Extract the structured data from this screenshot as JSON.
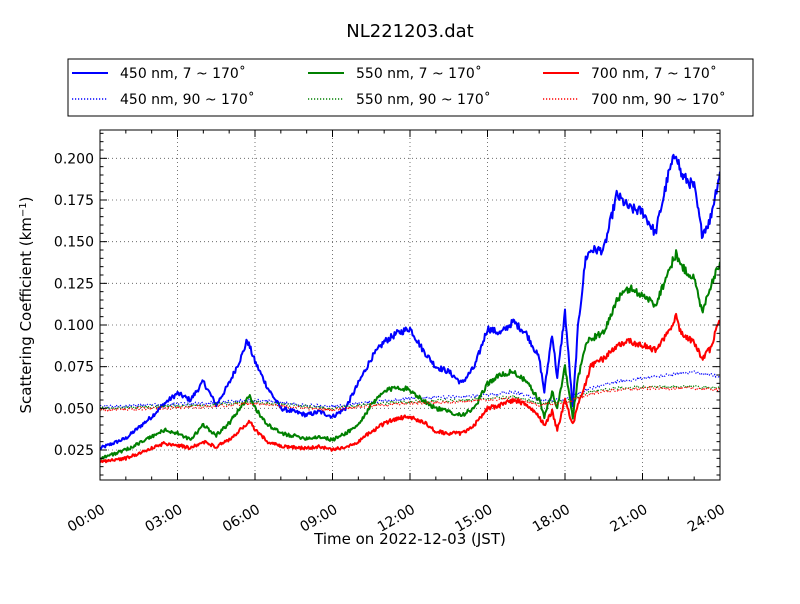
{
  "chart_data": {
    "type": "line",
    "title": "NL221203.dat",
    "xlabel": "Time on 2022-12-03 (JST)",
    "ylabel_prefix": "Scattering Coefficient (km",
    "ylabel_sup": "−1",
    "ylabel_suffix": ")",
    "xlim": [
      "00:00",
      "24:00"
    ],
    "ylim": [
      0.007,
      0.217
    ],
    "xticks": [
      "00:00",
      "03:00",
      "06:00",
      "09:00",
      "12:00",
      "15:00",
      "18:00",
      "21:00",
      "24:00"
    ],
    "yticks": [
      "0.025",
      "0.050",
      "0.075",
      "0.100",
      "0.125",
      "0.150",
      "0.175",
      "0.200"
    ],
    "grid": true,
    "legend_position": "top (above plot)",
    "series": [
      {
        "name": "450 nm, 7 ~ 170˚",
        "color": "#0000ff",
        "style": "solid",
        "x": [
          0,
          1,
          2,
          2.5,
          3,
          3.5,
          4,
          4.5,
          5,
          5.5,
          5.7,
          6,
          6.5,
          7,
          8,
          8.5,
          9,
          9.5,
          10,
          10.5,
          11,
          11.5,
          12,
          12.5,
          13,
          13.5,
          14,
          14.5,
          15,
          15.5,
          16,
          16.5,
          17,
          17.2,
          17.5,
          17.7,
          18,
          18.3,
          18.5,
          18.8,
          19,
          19.5,
          20,
          20.5,
          21,
          21.5,
          22,
          22.3,
          22.5,
          23,
          23.3,
          23.6,
          24
        ],
        "y": [
          0.026,
          0.032,
          0.045,
          0.053,
          0.059,
          0.055,
          0.066,
          0.052,
          0.065,
          0.082,
          0.091,
          0.078,
          0.062,
          0.05,
          0.046,
          0.048,
          0.045,
          0.05,
          0.065,
          0.08,
          0.09,
          0.095,
          0.098,
          0.085,
          0.075,
          0.072,
          0.065,
          0.075,
          0.098,
          0.095,
          0.102,
          0.095,
          0.08,
          0.06,
          0.095,
          0.068,
          0.108,
          0.05,
          0.098,
          0.14,
          0.145,
          0.145,
          0.178,
          0.17,
          0.168,
          0.155,
          0.19,
          0.204,
          0.19,
          0.183,
          0.155,
          0.162,
          0.192
        ]
      },
      {
        "name": "450 nm, 90 ~ 170˚",
        "color": "#0000ff",
        "style": "dotted",
        "x": [
          0,
          2,
          4,
          6,
          8,
          9,
          10,
          12,
          14,
          15,
          16,
          17,
          18,
          19,
          20,
          21,
          22,
          23,
          24
        ],
        "y": [
          0.051,
          0.052,
          0.053,
          0.055,
          0.052,
          0.051,
          0.053,
          0.056,
          0.057,
          0.058,
          0.06,
          0.055,
          0.055,
          0.062,
          0.066,
          0.068,
          0.07,
          0.072,
          0.069
        ]
      },
      {
        "name": "550 nm, 7 ~ 170˚",
        "color": "#008000",
        "style": "solid",
        "x": [
          0,
          1,
          2,
          2.5,
          3,
          3.5,
          4,
          4.5,
          5,
          5.5,
          5.8,
          6,
          6.5,
          7,
          8,
          8.5,
          9,
          9.5,
          10,
          10.5,
          11,
          11.5,
          12,
          12.5,
          13,
          13.5,
          14,
          14.5,
          15,
          15.5,
          16,
          16.5,
          17,
          17.2,
          17.5,
          17.7,
          18,
          18.3,
          18.5,
          18.8,
          19,
          19.5,
          20,
          20.5,
          21,
          21.5,
          22,
          22.3,
          22.5,
          23,
          23.3,
          23.6,
          24
        ],
        "y": [
          0.02,
          0.025,
          0.033,
          0.037,
          0.035,
          0.031,
          0.04,
          0.034,
          0.041,
          0.052,
          0.058,
          0.05,
          0.04,
          0.035,
          0.032,
          0.033,
          0.031,
          0.035,
          0.04,
          0.052,
          0.06,
          0.063,
          0.061,
          0.055,
          0.05,
          0.048,
          0.046,
          0.05,
          0.065,
          0.07,
          0.072,
          0.066,
          0.055,
          0.045,
          0.06,
          0.05,
          0.075,
          0.045,
          0.068,
          0.088,
          0.092,
          0.095,
          0.115,
          0.122,
          0.118,
          0.112,
          0.132,
          0.143,
          0.135,
          0.128,
          0.108,
          0.122,
          0.138
        ]
      },
      {
        "name": "550 nm, 90 ~ 170˚",
        "color": "#008000",
        "style": "dotted",
        "x": [
          0,
          2,
          4,
          6,
          8,
          9,
          10,
          12,
          14,
          15,
          16,
          17,
          18,
          19,
          20,
          21,
          22,
          23,
          24
        ],
        "y": [
          0.05,
          0.051,
          0.052,
          0.054,
          0.051,
          0.05,
          0.052,
          0.054,
          0.055,
          0.056,
          0.057,
          0.053,
          0.054,
          0.06,
          0.062,
          0.063,
          0.063,
          0.063,
          0.062
        ]
      },
      {
        "name": "700 nm, 7 ~ 170˚",
        "color": "#ff0000",
        "style": "solid",
        "x": [
          0,
          1,
          2,
          2.5,
          3,
          3.5,
          4,
          4.5,
          5,
          5.5,
          5.8,
          6,
          6.5,
          7,
          8,
          8.5,
          9,
          9.5,
          10,
          10.5,
          11,
          11.5,
          12,
          12.5,
          13,
          13.5,
          14,
          14.5,
          15,
          15.5,
          16,
          16.5,
          17,
          17.2,
          17.5,
          17.7,
          18,
          18.3,
          18.5,
          18.8,
          19,
          19.5,
          20,
          20.5,
          21,
          21.5,
          22,
          22.3,
          22.5,
          23,
          23.3,
          23.6,
          24
        ],
        "y": [
          0.018,
          0.02,
          0.026,
          0.029,
          0.028,
          0.026,
          0.03,
          0.027,
          0.031,
          0.038,
          0.042,
          0.037,
          0.03,
          0.027,
          0.026,
          0.027,
          0.025,
          0.027,
          0.03,
          0.036,
          0.041,
          0.044,
          0.045,
          0.042,
          0.036,
          0.035,
          0.035,
          0.04,
          0.05,
          0.052,
          0.055,
          0.052,
          0.045,
          0.04,
          0.048,
          0.037,
          0.055,
          0.04,
          0.052,
          0.065,
          0.075,
          0.08,
          0.088,
          0.09,
          0.088,
          0.085,
          0.095,
          0.105,
          0.095,
          0.09,
          0.08,
          0.085,
          0.103
        ]
      },
      {
        "name": "700 nm, 90 ~ 170˚",
        "color": "#ff0000",
        "style": "dotted",
        "x": [
          0,
          2,
          4,
          6,
          8,
          9,
          10,
          12,
          14,
          15,
          16,
          17,
          18,
          19,
          20,
          21,
          22,
          23,
          24
        ],
        "y": [
          0.049,
          0.05,
          0.051,
          0.053,
          0.05,
          0.049,
          0.051,
          0.053,
          0.054,
          0.055,
          0.056,
          0.052,
          0.053,
          0.059,
          0.061,
          0.062,
          0.062,
          0.062,
          0.061
        ]
      }
    ]
  }
}
